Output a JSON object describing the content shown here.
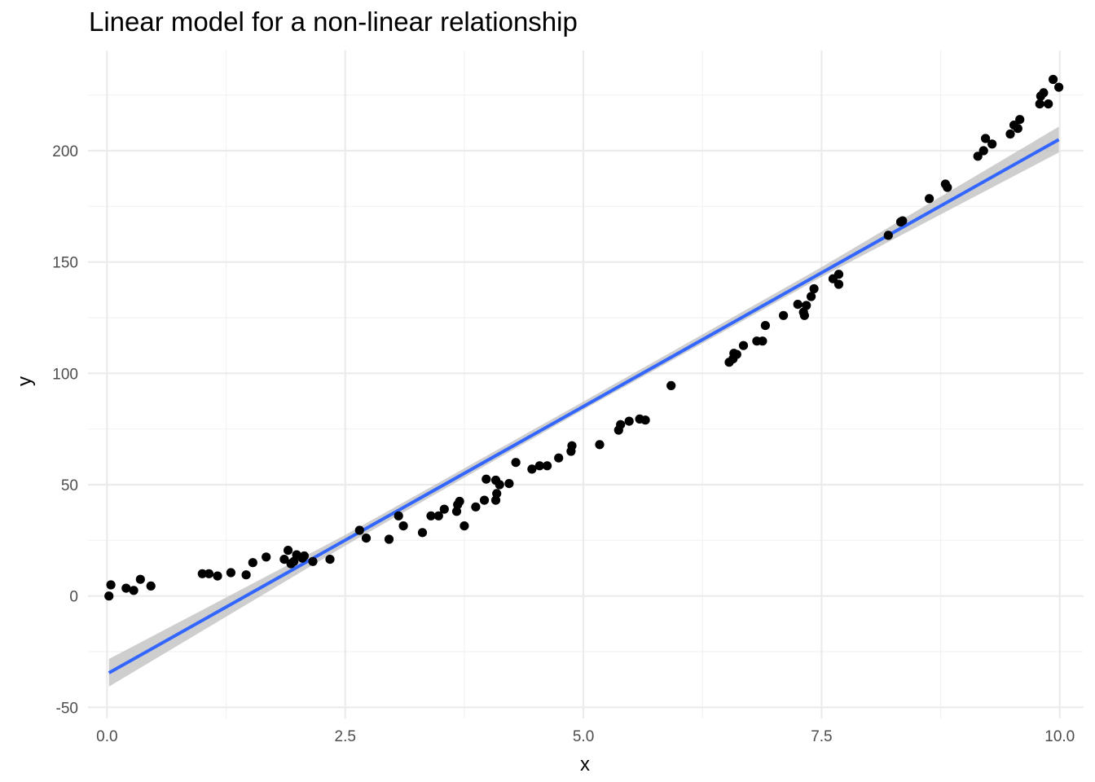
{
  "chart_data": {
    "type": "scatter",
    "title": "Linear model for a non-linear relationship",
    "xlabel": "x",
    "ylabel": "y",
    "xlim": [
      -0.2,
      10.25
    ],
    "ylim": [
      -55,
      245
    ],
    "x_ticks": [
      0.0,
      2.5,
      5.0,
      7.5,
      10.0
    ],
    "x_tick_labels": [
      "0.0",
      "2.5",
      "5.0",
      "7.5",
      "10.0"
    ],
    "y_ticks": [
      -50,
      0,
      50,
      100,
      150,
      200
    ],
    "y_tick_labels": [
      "-50",
      "0",
      "50",
      "100",
      "150",
      "200"
    ],
    "grid": true,
    "colors": {
      "points": "#000000",
      "line": "#3366ff",
      "band": "#bdbdbd",
      "grid": "#ebebeb"
    },
    "points": [
      [
        0.02,
        0.0
      ],
      [
        0.04,
        5.0
      ],
      [
        0.2,
        3.5
      ],
      [
        0.28,
        2.5
      ],
      [
        0.35,
        7.5
      ],
      [
        0.46,
        4.5
      ],
      [
        1.0,
        10.0
      ],
      [
        1.07,
        10.0
      ],
      [
        1.16,
        9.0
      ],
      [
        1.3,
        10.5
      ],
      [
        1.46,
        9.5
      ],
      [
        1.53,
        15.0
      ],
      [
        1.67,
        17.5
      ],
      [
        1.86,
        16.5
      ],
      [
        1.9,
        20.5
      ],
      [
        1.93,
        14.5
      ],
      [
        1.96,
        15.5
      ],
      [
        1.99,
        18.5
      ],
      [
        2.05,
        17.0
      ],
      [
        2.07,
        18.0
      ],
      [
        2.16,
        15.5
      ],
      [
        2.34,
        16.5
      ],
      [
        2.65,
        29.5
      ],
      [
        2.72,
        26.0
      ],
      [
        2.96,
        25.5
      ],
      [
        3.06,
        36.0
      ],
      [
        3.11,
        31.5
      ],
      [
        3.31,
        28.5
      ],
      [
        3.4,
        36.0
      ],
      [
        3.48,
        36.0
      ],
      [
        3.54,
        39.0
      ],
      [
        3.67,
        38.0
      ],
      [
        3.68,
        41.0
      ],
      [
        3.7,
        42.5
      ],
      [
        3.75,
        31.5
      ],
      [
        3.87,
        40.0
      ],
      [
        3.96,
        43.0
      ],
      [
        3.98,
        52.5
      ],
      [
        4.08,
        52.0
      ],
      [
        4.08,
        43.0
      ],
      [
        4.09,
        46.0
      ],
      [
        4.12,
        50.0
      ],
      [
        4.22,
        50.5
      ],
      [
        4.29,
        60.0
      ],
      [
        4.46,
        57.0
      ],
      [
        4.54,
        58.5
      ],
      [
        4.62,
        58.5
      ],
      [
        4.74,
        62.0
      ],
      [
        4.87,
        65.0
      ],
      [
        4.88,
        67.5
      ],
      [
        5.17,
        68.0
      ],
      [
        5.37,
        74.5
      ],
      [
        5.39,
        77.0
      ],
      [
        5.48,
        78.5
      ],
      [
        5.59,
        79.5
      ],
      [
        5.65,
        79.0
      ],
      [
        5.92,
        94.5
      ],
      [
        6.53,
        105.0
      ],
      [
        6.57,
        106.5
      ],
      [
        6.58,
        109.0
      ],
      [
        6.61,
        108.5
      ],
      [
        6.68,
        112.5
      ],
      [
        6.82,
        114.5
      ],
      [
        6.88,
        114.5
      ],
      [
        6.91,
        121.5
      ],
      [
        7.1,
        126.0
      ],
      [
        7.25,
        131.0
      ],
      [
        7.31,
        127.5
      ],
      [
        7.32,
        126.0
      ],
      [
        7.34,
        130.5
      ],
      [
        7.39,
        134.5
      ],
      [
        7.42,
        138.0
      ],
      [
        7.62,
        142.5
      ],
      [
        7.68,
        144.5
      ],
      [
        7.68,
        140.0
      ],
      [
        8.2,
        162.0
      ],
      [
        8.33,
        168.0
      ],
      [
        8.35,
        168.5
      ],
      [
        8.63,
        178.5
      ],
      [
        8.8,
        185.0
      ],
      [
        8.82,
        183.5
      ],
      [
        9.14,
        197.5
      ],
      [
        9.2,
        200.0
      ],
      [
        9.22,
        205.5
      ],
      [
        9.29,
        203.0
      ],
      [
        9.48,
        207.5
      ],
      [
        9.52,
        211.5
      ],
      [
        9.56,
        210.0
      ],
      [
        9.58,
        214.0
      ],
      [
        9.79,
        221.0
      ],
      [
        9.8,
        224.5
      ],
      [
        9.83,
        226.0
      ],
      [
        9.88,
        221.0
      ],
      [
        9.93,
        232.0
      ],
      [
        9.99,
        228.5
      ]
    ],
    "fit_line": {
      "x": [
        0.02,
        9.99
      ],
      "y": [
        -34.5,
        205.0
      ]
    },
    "confidence_band": {
      "x": [
        0.02,
        2.5,
        5.0,
        7.5,
        9.99
      ],
      "lower": [
        -40.7,
        22.6,
        83.7,
        143.3,
        199.2
      ],
      "upper": [
        -28.3,
        27.4,
        87.3,
        147.7,
        210.8
      ]
    }
  }
}
